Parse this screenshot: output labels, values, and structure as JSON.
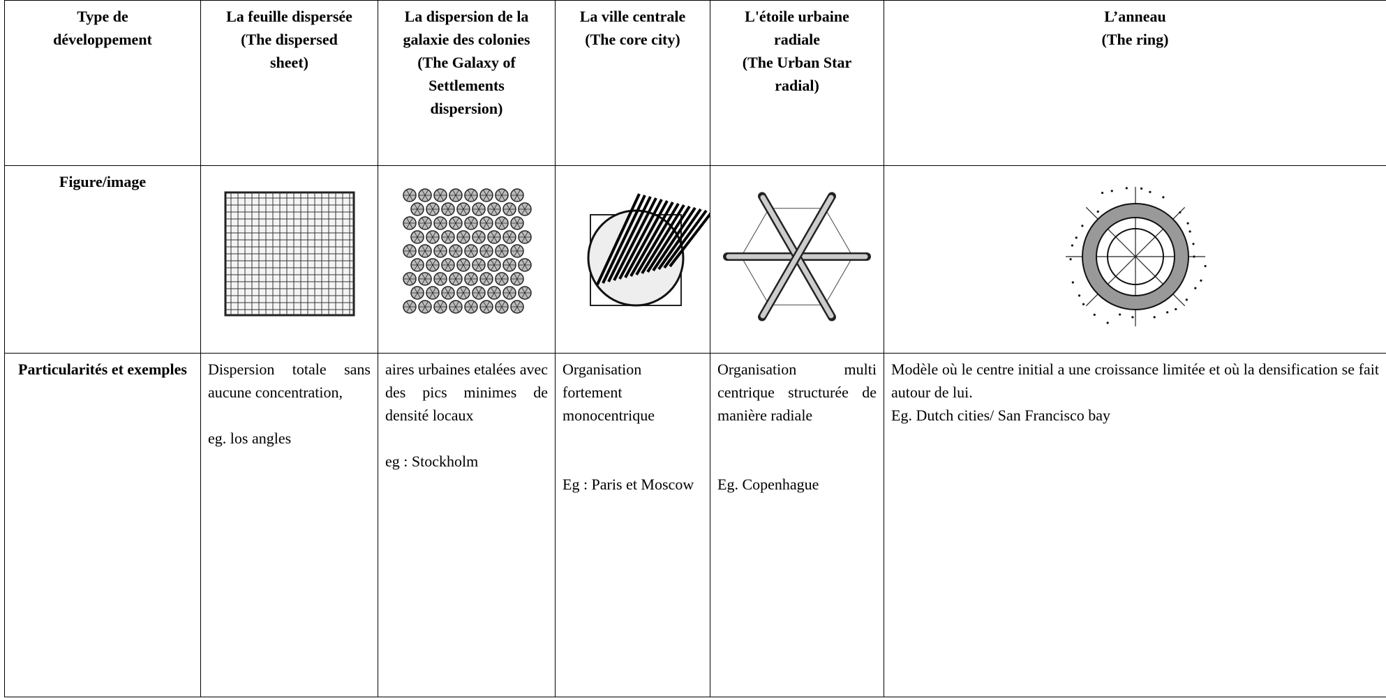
{
  "table": {
    "header": [
      [
        "Type de",
        "développement"
      ],
      [
        "La feuille dispersée",
        "(The dispersed",
        "sheet)"
      ],
      [
        "La dispersion de la",
        "galaxie des colonies",
        "(The Galaxy of",
        "Settlements",
        "dispersion)"
      ],
      [
        "La ville centrale",
        "(The core city)"
      ],
      [
        "L'étoile urbaine",
        "radiale",
        "(The Urban Star",
        "radial)"
      ],
      [
        "L’anneau",
        "(The ring)"
      ]
    ],
    "figure_row": {
      "label": "Figure/image"
    },
    "details_row": {
      "label": "Particularités et exemples",
      "cells": [
        [
          "Dispersion totale sans aucune concentration,",
          "eg. los angles"
        ],
        [
          "aires urbaines etalées avec des pics minimes de densité locaux",
          "eg : Stockholm"
        ],
        [
          "Organisation fortement monocentrique",
          "Eg : Paris et Moscow"
        ],
        [
          "Organisation multi centrique structurée de manière radiale",
          "Eg. Copenhague"
        ],
        [
          "Modèle où le centre initial a une croissance limitée et où la densification se fait autour de lui.",
          "Eg. Dutch cities/ San Francisco bay"
        ]
      ]
    }
  }
}
